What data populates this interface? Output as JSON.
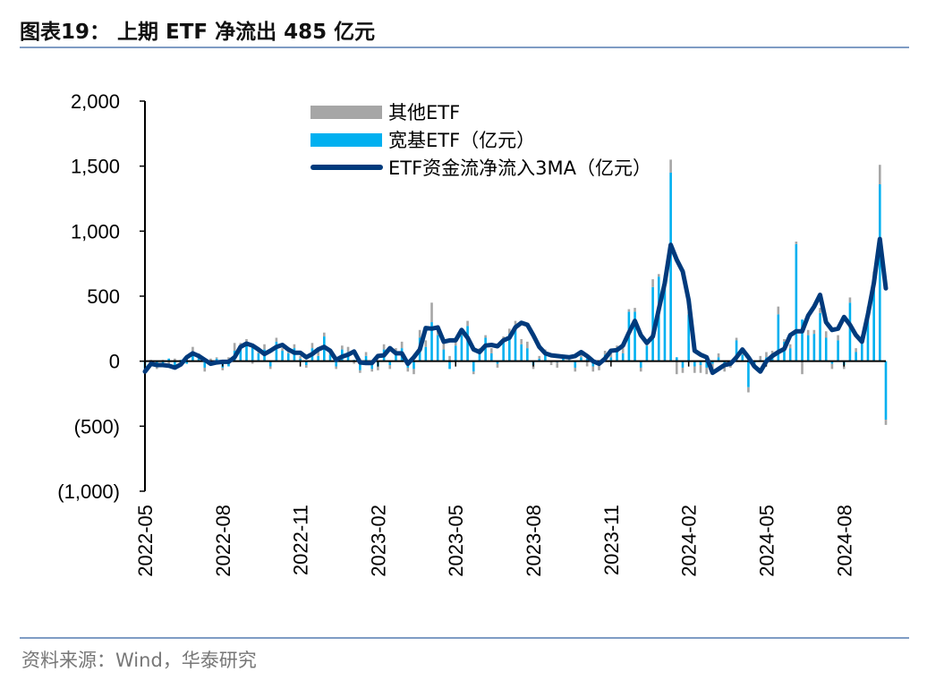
{
  "title": "图表19：  上期 ETF 净流出 485 亿元",
  "source": "资料来源：Wind，华泰研究",
  "colors": {
    "other": "#a6a6a6",
    "broad": "#00b0f0",
    "ma": "#003a7c",
    "rule": "#7f9cc4"
  },
  "chart_data": {
    "type": "bar+line",
    "xlabel": "",
    "ylabel": "",
    "ylim": [
      -1000,
      2000
    ],
    "y_ticks": [
      2000,
      1500,
      1000,
      500,
      0,
      -500,
      -1000
    ],
    "y_tick_labels": [
      "2,000",
      "1,500",
      "1,000",
      "500",
      "0",
      "(500)",
      "(1,000)"
    ],
    "x_tick_labels": [
      "2022-05",
      "2022-08",
      "2022-11",
      "2023-02",
      "2023-05",
      "2023-08",
      "2023-11",
      "2024-02",
      "2024-05",
      "2024-08"
    ],
    "frequency": "weekly",
    "legend_position": "top",
    "series": [
      {
        "name": "其他ETF",
        "type": "stacked-bar",
        "values": [
          -20,
          10,
          -20,
          10,
          -40,
          20,
          -30,
          30,
          40,
          20,
          -30,
          20,
          10,
          -20,
          30,
          60,
          40,
          20,
          -20,
          30,
          40,
          -20,
          30,
          20,
          40,
          30,
          20,
          -20,
          40,
          50,
          30,
          40,
          -20,
          30,
          40,
          -20,
          -20,
          30,
          -20,
          -30,
          40,
          -30,
          40,
          50,
          -30,
          -40,
          60,
          50,
          150,
          40,
          60,
          40,
          60,
          50,
          40,
          -20,
          30,
          20,
          40,
          -30,
          40,
          40,
          30,
          40,
          50,
          -30,
          20,
          30,
          -30,
          -40,
          20,
          20,
          -30,
          40,
          -40,
          -40,
          -40,
          30,
          30,
          30,
          40,
          20,
          30,
          -30,
          40,
          60,
          20,
          60,
          100,
          -100,
          -40,
          20,
          -50,
          -60,
          -50,
          -40,
          30,
          -50,
          -30,
          20,
          40,
          -40,
          -20,
          30,
          40,
          40,
          60,
          20,
          30,
          20,
          -100,
          40,
          30,
          40,
          50,
          -40,
          40,
          -30,
          40,
          30,
          30,
          50,
          40,
          150,
          -40
        ]
      },
      {
        "name": "宽基ETF（亿元）",
        "type": "stacked-bar",
        "values": [
          -60,
          -10,
          -40,
          -30,
          20,
          -60,
          10,
          -20,
          70,
          40,
          -50,
          -30,
          20,
          -50,
          -40,
          80,
          100,
          150,
          120,
          60,
          90,
          -40,
          150,
          80,
          60,
          100,
          20,
          -30,
          100,
          40,
          190,
          50,
          -40,
          90,
          70,
          10,
          -70,
          40,
          -60,
          -40,
          90,
          -30,
          60,
          100,
          -50,
          -60,
          180,
          110,
          300,
          200,
          90,
          -60,
          120,
          200,
          270,
          -80,
          70,
          180,
          60,
          -20,
          150,
          210,
          280,
          130,
          100,
          -30,
          20,
          60,
          0,
          -10,
          30,
          10,
          -50,
          30,
          20,
          -40,
          -30,
          50,
          30,
          90,
          60,
          380,
          380,
          -50,
          120,
          570,
          650,
          600,
          1450,
          30,
          -50,
          360,
          -40,
          -30,
          -50,
          -20,
          30,
          -30,
          -20,
          160,
          50,
          -200,
          -20,
          10,
          30,
          40,
          360,
          150,
          100,
          900,
          320,
          200,
          210,
          370,
          180,
          -20,
          160,
          -30,
          450,
          70,
          170,
          370,
          650,
          1360,
          -450
        ]
      },
      {
        "name": "ETF资金流净流入3MA（亿元）",
        "type": "line",
        "values": [
          -80,
          -20,
          -30,
          -30,
          -35,
          -50,
          -25,
          30,
          60,
          40,
          10,
          -20,
          -10,
          -5,
          -5,
          30,
          110,
          135,
          120,
          90,
          55,
          80,
          110,
          125,
          90,
          65,
          65,
          30,
          55,
          90,
          110,
          80,
          10,
          35,
          50,
          75,
          -10,
          -15,
          -15,
          40,
          45,
          100,
          60,
          60,
          -20,
          30,
          90,
          255,
          250,
          260,
          150,
          160,
          160,
          240,
          180,
          90,
          70,
          120,
          125,
          115,
          160,
          180,
          260,
          295,
          280,
          200,
          110,
          60,
          45,
          40,
          35,
          30,
          40,
          70,
          40,
          0,
          -20,
          20,
          80,
          85,
          120,
          220,
          310,
          200,
          140,
          190,
          400,
          600,
          895,
          780,
          690,
          470,
          80,
          50,
          30,
          -90,
          -60,
          -30,
          -20,
          30,
          90,
          30,
          -40,
          -80,
          0,
          40,
          70,
          95,
          200,
          230,
          230,
          350,
          420,
          510,
          300,
          240,
          250,
          340,
          280,
          200,
          150,
          360,
          600,
          940,
          560
        ]
      }
    ]
  }
}
